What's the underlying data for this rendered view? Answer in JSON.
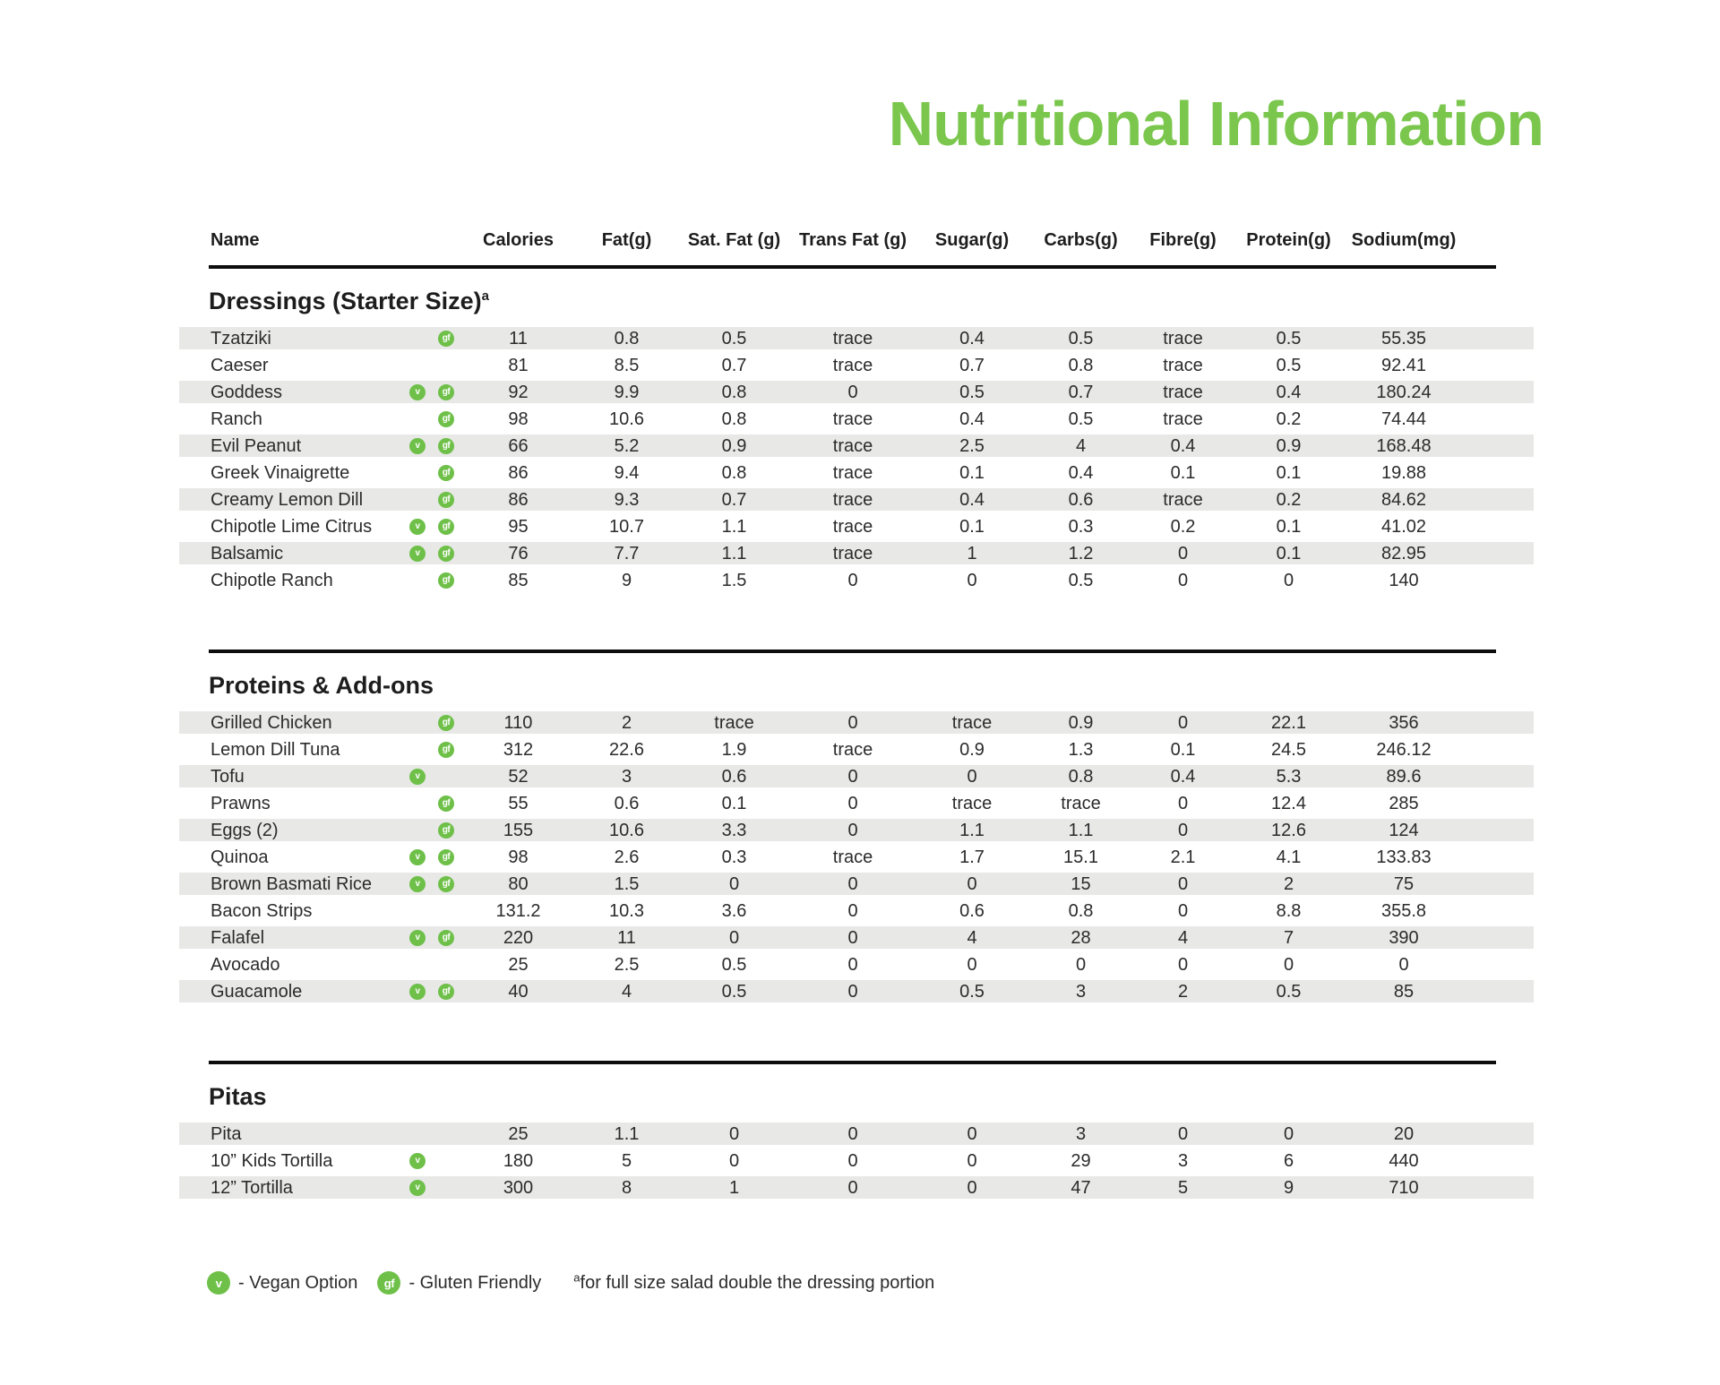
{
  "title": "Nutritional Information",
  "columns": [
    "Name",
    "Calories",
    "Fat(g)",
    "Sat. Fat (g)",
    "Trans Fat (g)",
    "Sugar(g)",
    "Carbs(g)",
    "Fibre(g)",
    "Protein(g)",
    "Sodium(mg)"
  ],
  "column_keys": [
    "calories",
    "fat",
    "sat_fat",
    "trans_fat",
    "sugar",
    "carbs",
    "fibre",
    "protein",
    "sodium"
  ],
  "badges": {
    "vegan_symbol": "v",
    "gluten_friendly_symbol": "gf"
  },
  "sections": [
    {
      "heading": "Dressings (Starter Size)",
      "heading_sup": "a",
      "rows": [
        {
          "name": "Tzatziki",
          "vegan": false,
          "gf": true,
          "values": [
            "11",
            "0.8",
            "0.5",
            "trace",
            "0.4",
            "0.5",
            "trace",
            "0.5",
            "55.35"
          ]
        },
        {
          "name": "Caeser",
          "vegan": false,
          "gf": false,
          "values": [
            "81",
            "8.5",
            "0.7",
            "trace",
            "0.7",
            "0.8",
            "trace",
            "0.5",
            "92.41"
          ]
        },
        {
          "name": "Goddess",
          "vegan": true,
          "gf": true,
          "values": [
            "92",
            "9.9",
            "0.8",
            "0",
            "0.5",
            "0.7",
            "trace",
            "0.4",
            "180.24"
          ]
        },
        {
          "name": "Ranch",
          "vegan": false,
          "gf": true,
          "values": [
            "98",
            "10.6",
            "0.8",
            "trace",
            "0.4",
            "0.5",
            "trace",
            "0.2",
            "74.44"
          ]
        },
        {
          "name": "Evil Peanut",
          "vegan": true,
          "gf": true,
          "values": [
            "66",
            "5.2",
            "0.9",
            "trace",
            "2.5",
            "4",
            "0.4",
            "0.9",
            "168.48"
          ]
        },
        {
          "name": "Greek Vinaigrette",
          "vegan": false,
          "gf": true,
          "values": [
            "86",
            "9.4",
            "0.8",
            "trace",
            "0.1",
            "0.4",
            "0.1",
            "0.1",
            "19.88"
          ]
        },
        {
          "name": "Creamy Lemon Dill",
          "vegan": false,
          "gf": true,
          "values": [
            "86",
            "9.3",
            "0.7",
            "trace",
            "0.4",
            "0.6",
            "trace",
            "0.2",
            "84.62"
          ]
        },
        {
          "name": "Chipotle Lime Citrus",
          "vegan": true,
          "gf": true,
          "values": [
            "95",
            "10.7",
            "1.1",
            "trace",
            "0.1",
            "0.3",
            "0.2",
            "0.1",
            "41.02"
          ]
        },
        {
          "name": "Balsamic",
          "vegan": true,
          "gf": true,
          "values": [
            "76",
            "7.7",
            "1.1",
            "trace",
            "1",
            "1.2",
            "0",
            "0.1",
            "82.95"
          ]
        },
        {
          "name": "Chipotle Ranch",
          "vegan": false,
          "gf": true,
          "values": [
            "85",
            "9",
            "1.5",
            "0",
            "0",
            "0.5",
            "0",
            "0",
            "140"
          ]
        }
      ]
    },
    {
      "heading": "Proteins & Add-ons",
      "heading_sup": "",
      "rows": [
        {
          "name": "Grilled Chicken",
          "vegan": false,
          "gf": true,
          "values": [
            "110",
            "2",
            "trace",
            "0",
            "trace",
            "0.9",
            "0",
            "22.1",
            "356"
          ]
        },
        {
          "name": "Lemon Dill Tuna",
          "vegan": false,
          "gf": true,
          "values": [
            "312",
            "22.6",
            "1.9",
            "trace",
            "0.9",
            "1.3",
            "0.1",
            "24.5",
            "246.12"
          ]
        },
        {
          "name": "Tofu",
          "vegan": true,
          "gf": false,
          "values": [
            "52",
            "3",
            "0.6",
            "0",
            "0",
            "0.8",
            "0.4",
            "5.3",
            "89.6"
          ]
        },
        {
          "name": "Prawns",
          "vegan": false,
          "gf": true,
          "values": [
            "55",
            "0.6",
            "0.1",
            "0",
            "trace",
            "trace",
            "0",
            "12.4",
            "285"
          ]
        },
        {
          "name": "Eggs (2)",
          "vegan": false,
          "gf": true,
          "values": [
            "155",
            "10.6",
            "3.3",
            "0",
            "1.1",
            "1.1",
            "0",
            "12.6",
            "124"
          ]
        },
        {
          "name": "Quinoa",
          "vegan": true,
          "gf": true,
          "values": [
            "98",
            "2.6",
            "0.3",
            "trace",
            "1.7",
            "15.1",
            "2.1",
            "4.1",
            "133.83"
          ]
        },
        {
          "name": "Brown Basmati Rice",
          "vegan": true,
          "gf": true,
          "values": [
            "80",
            "1.5",
            "0",
            "0",
            "0",
            "15",
            "0",
            "2",
            "75"
          ]
        },
        {
          "name": "Bacon Strips",
          "vegan": false,
          "gf": false,
          "values": [
            "131.2",
            "10.3",
            "3.6",
            "0",
            "0.6",
            "0.8",
            "0",
            "8.8",
            "355.8"
          ]
        },
        {
          "name": "Falafel",
          "vegan": true,
          "gf": true,
          "values": [
            "220",
            "11",
            "0",
            "0",
            "4",
            "28",
            "4",
            "7",
            "390"
          ]
        },
        {
          "name": "Avocado",
          "vegan": false,
          "gf": false,
          "values": [
            "25",
            "2.5",
            "0.5",
            "0",
            "0",
            "0",
            "0",
            "0",
            "0"
          ]
        },
        {
          "name": "Guacamole",
          "vegan": true,
          "gf": true,
          "values": [
            "40",
            "4",
            "0.5",
            "0",
            "0.5",
            "3",
            "2",
            "0.5",
            "85"
          ]
        }
      ]
    },
    {
      "heading": "Pitas",
      "heading_sup": "",
      "rows": [
        {
          "name": "Pita",
          "vegan": false,
          "gf": false,
          "values": [
            "25",
            "1.1",
            "0",
            "0",
            "0",
            "3",
            "0",
            "0",
            "20"
          ]
        },
        {
          "name": "10” Kids Tortilla",
          "vegan": true,
          "gf": false,
          "values": [
            "180",
            "5",
            "0",
            "0",
            "0",
            "29",
            "3",
            "6",
            "440"
          ]
        },
        {
          "name": "12” Tortilla",
          "vegan": true,
          "gf": false,
          "values": [
            "300",
            "8",
            "1",
            "0",
            "0",
            "47",
            "5",
            "9",
            "710"
          ]
        }
      ]
    }
  ],
  "legend": {
    "vegan_symbol": "v",
    "vegan_label": "- Vegan Option",
    "gf_symbol": "gf",
    "gf_label": "- Gluten Friendly",
    "note_sup": "a",
    "note": "for full size salad double the dressing portion"
  },
  "colors": {
    "accent_green": "#7bc74e",
    "badge_green": "#6ec049",
    "stripe_gray": "#e8e8e7",
    "rule_black": "#0d0d0d",
    "text": "#2b2b2b"
  }
}
